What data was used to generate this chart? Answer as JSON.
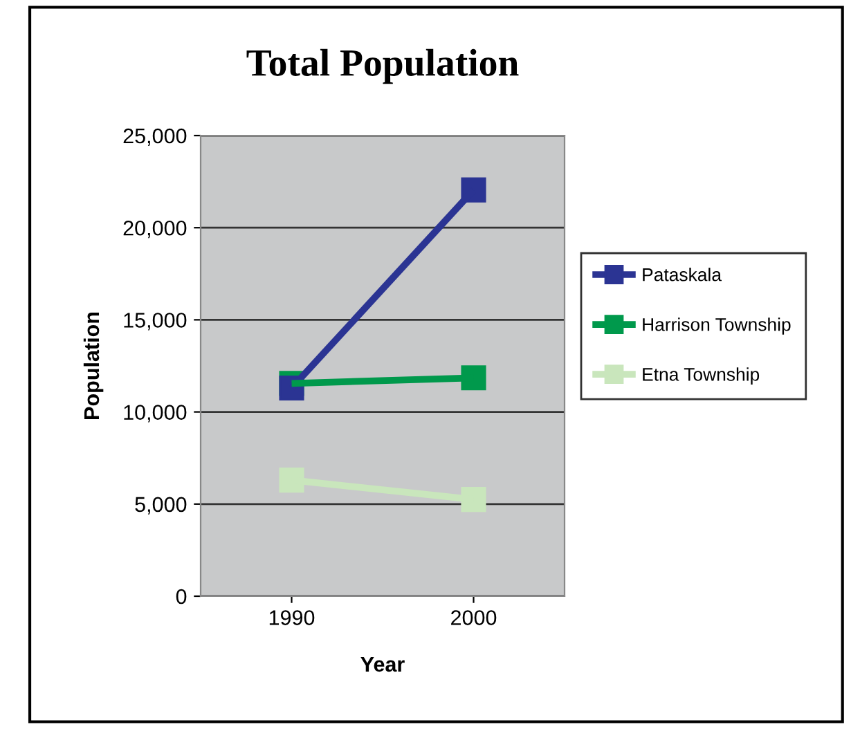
{
  "chart_data": {
    "type": "line",
    "title": "Total Population",
    "xlabel": "Year",
    "ylabel": "Population",
    "categories": [
      "1990",
      "2000"
    ],
    "series": [
      {
        "name": "Pataskala",
        "color": "#2b3493",
        "values": [
          11300,
          22050
        ]
      },
      {
        "name": "Harrison Township",
        "color": "#00994c",
        "values": [
          11550,
          11850
        ]
      },
      {
        "name": "Etna Township",
        "color": "#c9e6bc",
        "values": [
          6300,
          5250
        ]
      }
    ],
    "ylim": [
      0,
      25000
    ],
    "yticks": [
      {
        "value": 0,
        "label": "0"
      },
      {
        "value": 5000,
        "label": "5,000"
      },
      {
        "value": 10000,
        "label": "10,000"
      },
      {
        "value": 15000,
        "label": "15,000"
      },
      {
        "value": 20000,
        "label": "20,000"
      },
      {
        "value": 25000,
        "label": "25,000"
      }
    ],
    "grid": "y",
    "legend": "right",
    "marker": "square",
    "line_style": "solid"
  }
}
